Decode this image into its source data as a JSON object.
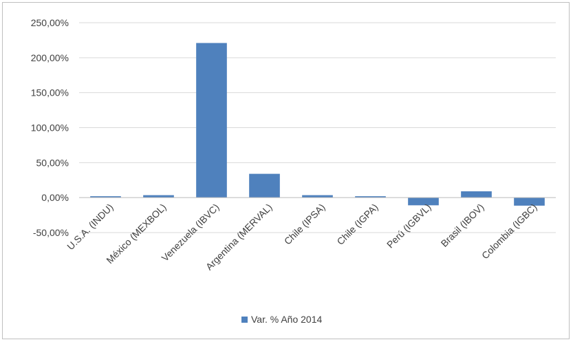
{
  "chart_data": {
    "type": "bar",
    "categories": [
      "U.S.A. (INDU)",
      "México (MEXBOL)",
      "Venezuela (IBVC)",
      "Argentina (MERVAL)",
      "Chile (IPSA)",
      "Chile (IGPA)",
      "Perú (IGBVL)",
      "Brasil (IBOV)",
      "Colombia (IGBC)"
    ],
    "series": [
      {
        "name": "Var. % Año 2014",
        "values": [
          2.0,
          3.5,
          221.0,
          34.0,
          3.5,
          2.0,
          -11.0,
          9.0,
          -11.5
        ],
        "color": "#4f81bd"
      }
    ],
    "ylim": [
      -50,
      250
    ],
    "yticks": [
      -50,
      0,
      50,
      100,
      150,
      200,
      250
    ],
    "ytick_labels": [
      "-50,00%",
      "0,00%",
      "50,00%",
      "100,00%",
      "150,00%",
      "200,00%",
      "250,00%"
    ],
    "grid": true,
    "legend": {
      "position": "bottom",
      "label": "Var. % Año 2014"
    },
    "title": "",
    "xlabel": "",
    "ylabel": ""
  }
}
